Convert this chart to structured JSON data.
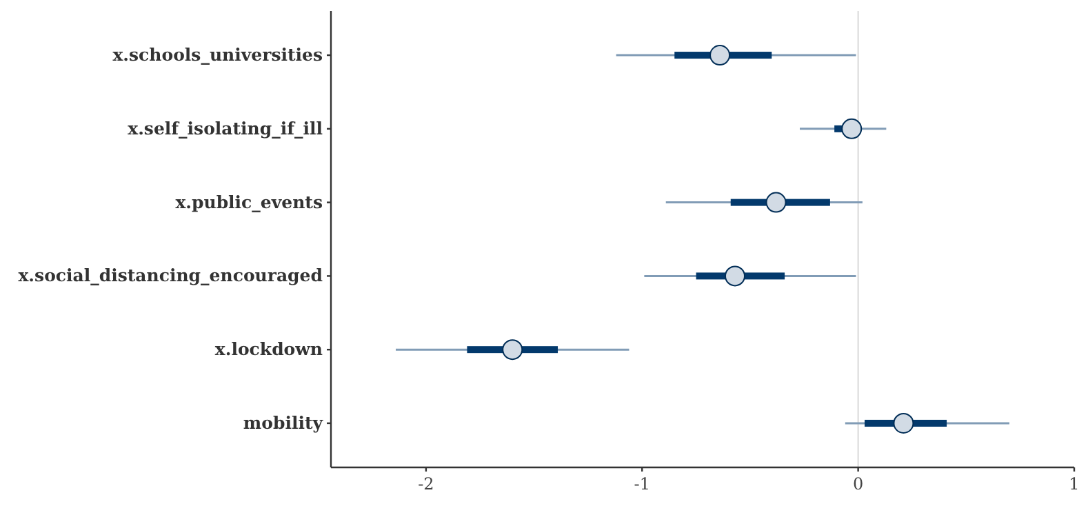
{
  "chart_data": {
    "type": "box",
    "orientation": "horizontal",
    "categories": [
      "x.schools_universities",
      "x.self_isolating_if_ill",
      "x.public_events",
      "x.social_distancing_encouraged",
      "x.lockdown",
      "mobility"
    ],
    "boxes": [
      {
        "low": -1.12,
        "q1": -0.85,
        "median": -0.64,
        "q3": -0.4,
        "high": -0.01
      },
      {
        "low": -0.27,
        "q1": -0.11,
        "median": -0.03,
        "q3": 0.01,
        "high": 0.13
      },
      {
        "low": -0.89,
        "q1": -0.59,
        "median": -0.38,
        "q3": -0.13,
        "high": 0.02
      },
      {
        "low": -0.99,
        "q1": -0.75,
        "median": -0.57,
        "q3": -0.34,
        "high": -0.01
      },
      {
        "low": -2.14,
        "q1": -1.81,
        "median": -1.6,
        "q3": -1.39,
        "high": -1.06
      },
      {
        "low": -0.06,
        "q1": 0.03,
        "median": 0.21,
        "q3": 0.41,
        "high": 0.7
      }
    ],
    "color": "#03396c",
    "marker": "circle",
    "xlim": [
      -2.44,
      1.0
    ],
    "xticks": [
      -2,
      -1,
      0,
      1
    ],
    "ref_lines": [
      {
        "axis": "x",
        "value": 0,
        "color": "#d9d9d9"
      }
    ],
    "grid": false
  }
}
